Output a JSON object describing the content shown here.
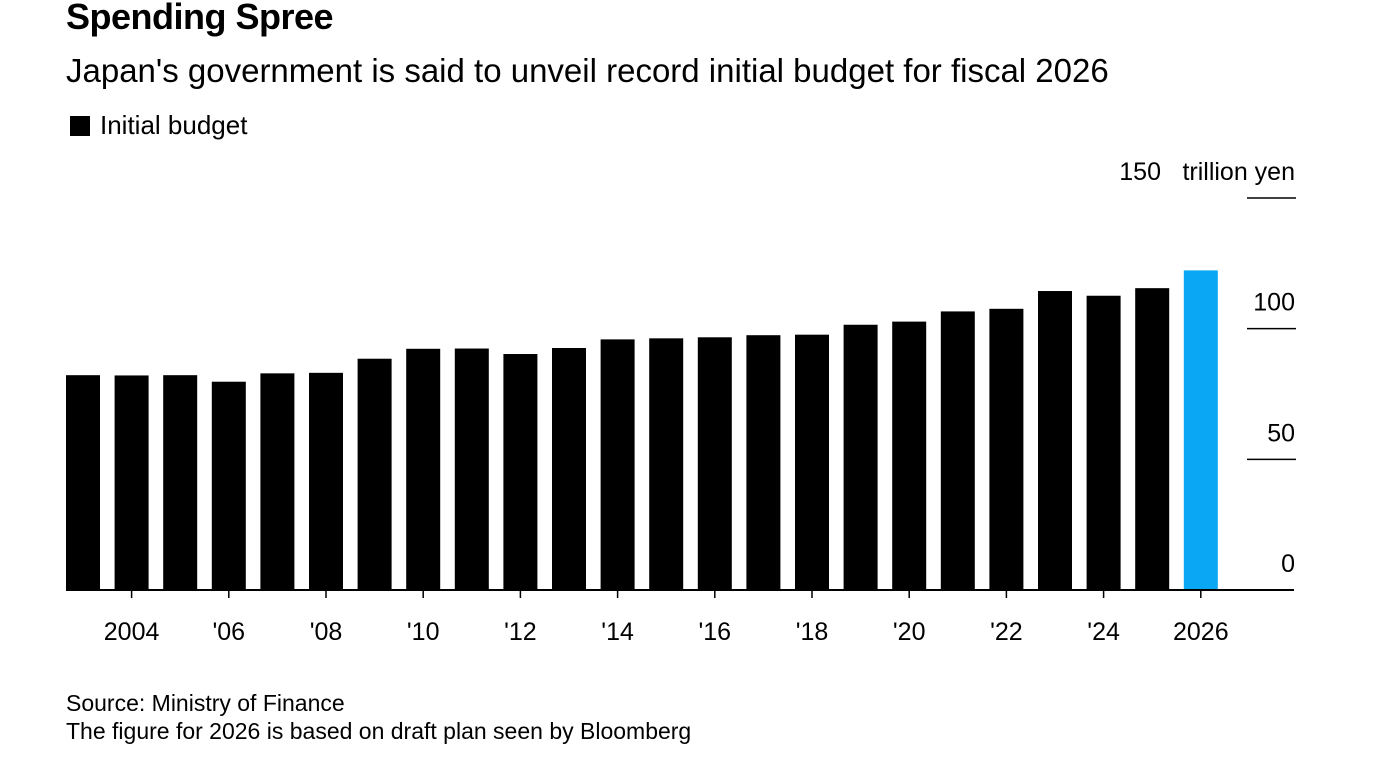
{
  "title": "Spending Spree",
  "subtitle": "Japan's government is said to unveil record initial budget for fiscal 2026",
  "legend": {
    "label": "Initial budget"
  },
  "source": "Source: Ministry of Finance",
  "note": "The figure for 2026 is based on draft plan seen by Bloomberg",
  "colors": {
    "bar": "#000000",
    "highlight": "#0aa7f5",
    "axis": "#000000"
  },
  "chart_data": {
    "type": "bar",
    "title": "Spending Spree",
    "subtitle": "Japan's government is said to unveil record initial budget for fiscal 2026",
    "ylabel": "trillion yen",
    "xlabel": "",
    "ylim": [
      0,
      150
    ],
    "yticks": [
      0,
      50,
      100,
      150
    ],
    "ytick_labels": [
      "0",
      "50",
      "100",
      "150"
    ],
    "y_unit_label": "trillion yen",
    "categories": [
      2003,
      2004,
      2005,
      2006,
      2007,
      2008,
      2009,
      2010,
      2011,
      2012,
      2013,
      2014,
      2015,
      2016,
      2017,
      2018,
      2019,
      2020,
      2021,
      2022,
      2023,
      2024,
      2025,
      2026
    ],
    "values": [
      82.2,
      82.1,
      82.2,
      79.7,
      82.9,
      83.1,
      88.5,
      92.3,
      92.4,
      90.3,
      92.6,
      95.9,
      96.3,
      96.7,
      97.5,
      97.7,
      101.5,
      102.7,
      106.6,
      107.6,
      114.4,
      112.6,
      115.5,
      122.3
    ],
    "highlight": [
      2026
    ],
    "xtick_positions": [
      2004,
      2006,
      2008,
      2010,
      2012,
      2014,
      2016,
      2018,
      2020,
      2022,
      2024,
      2026
    ],
    "xtick_labels": [
      "2004",
      "'06",
      "'08",
      "'10",
      "'12",
      "'14",
      "'16",
      "'18",
      "'20",
      "'22",
      "'24",
      "2026"
    ],
    "series": [
      {
        "name": "Initial budget"
      }
    ],
    "grid": false,
    "legend_position": "top-left"
  }
}
